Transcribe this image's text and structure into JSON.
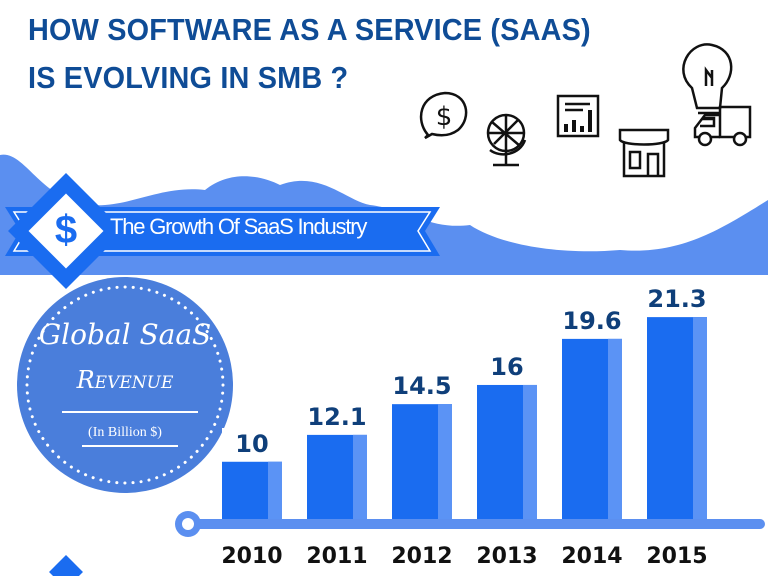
{
  "header": {
    "title_line1": "HOW SOFTWARE AS A SERVICE (SAAS)",
    "title_line2": "IS EVOLVING IN SMB ?",
    "icons": [
      "dollar-speech-bubble-icon",
      "globe-icon",
      "bar-report-icon",
      "storefront-icon",
      "lightbulb-icon",
      "delivery-truck-icon"
    ]
  },
  "ribbon": {
    "label": "The Growth Of SaaS Industry",
    "icon": "dollar-icon",
    "icon_glyph": "$"
  },
  "badge": {
    "line1": "Global SaaS",
    "line2": "Revenue",
    "unit": "(In Billion $)"
  },
  "colors": {
    "title": "#0f4c96",
    "bar": "#1a6cf0",
    "bar_light": "#5b93f5",
    "band": "#5b8ff0",
    "circle": "#4a7edb",
    "value_text": "#0f3f7a"
  },
  "chart_data": {
    "type": "bar",
    "title": "Global SaaS Revenue",
    "ylabel": "(In Billion $)",
    "categories": [
      "2010",
      "2011",
      "2012",
      "2013",
      "2014",
      "2015"
    ],
    "values": [
      10,
      12.1,
      14.5,
      16,
      19.6,
      21.3
    ],
    "value_labels": [
      "10",
      "12.1",
      "14.5",
      "16",
      "19.6",
      "21.3"
    ],
    "grid": false,
    "legend": "none"
  }
}
